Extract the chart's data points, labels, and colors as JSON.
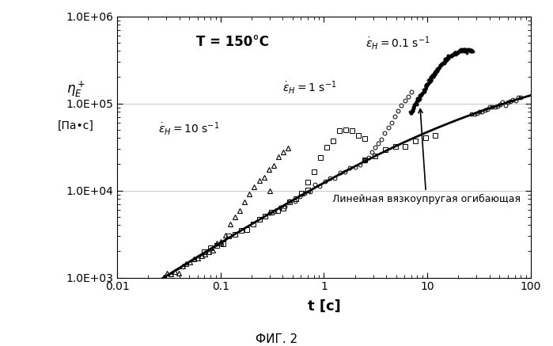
{
  "title": "T = 150°C",
  "xlabel": "t [с]",
  "ylabel": "ηᴱ⁺\n[Па•с]",
  "fig_caption": "ФИГ. 2",
  "label_envelope": "Линейная вязкоупругая огибающая",
  "background_color": "#ffffff"
}
